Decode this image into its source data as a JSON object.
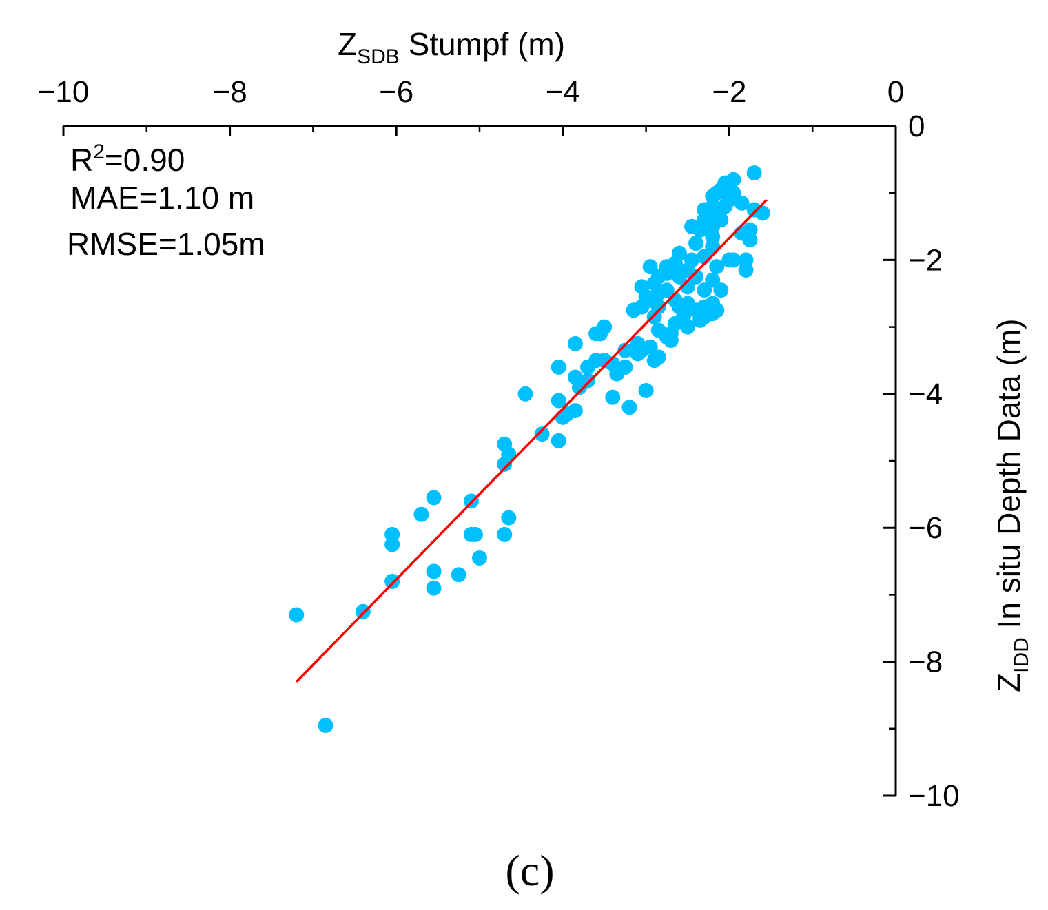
{
  "chart_data": {
    "type": "scatter",
    "panel_label": "(c)",
    "xlabel": {
      "main": "Z",
      "sub": "SDB",
      "rest": " Stumpf (m)"
    },
    "ylabel": {
      "main": "Z",
      "sub": "IDD",
      "rest": " In situ Depth Data (m)"
    },
    "xlim": [
      -10,
      0
    ],
    "ylim": [
      -10,
      0
    ],
    "x_axis_position": "top",
    "y_axis_position": "right",
    "x_ticks": [
      -10,
      -8,
      -6,
      -4,
      -2,
      0
    ],
    "x_tick_labels": [
      "−10",
      "−8",
      "−6",
      "−4",
      "−2",
      "0"
    ],
    "y_ticks": [
      0,
      -2,
      -4,
      -6,
      -8,
      -10
    ],
    "y_tick_labels": [
      "0",
      "−2",
      "−4",
      "−6",
      "−8",
      "−10"
    ],
    "stats": {
      "r2_prefix": "R",
      "r2_sup": "2",
      "r2_value": "=0.90",
      "mae": "MAE=1.10 m",
      "rmse": "RMSE=1.05m"
    },
    "colors": {
      "points": "#00bfff",
      "fit_line": "#ff0000",
      "axis": "#000000"
    },
    "fit_line": {
      "x": [
        -7.2,
        -1.55
      ],
      "y": [
        -8.3,
        -1.1
      ]
    },
    "series": [
      {
        "name": "observations",
        "points": [
          [
            -1.7,
            -0.7
          ],
          [
            -1.95,
            -0.8
          ],
          [
            -2.05,
            -0.85
          ],
          [
            -2.1,
            -0.95
          ],
          [
            -2.15,
            -1.0
          ],
          [
            -2.2,
            -1.05
          ],
          [
            -1.95,
            -1.0
          ],
          [
            -2.0,
            -1.1
          ],
          [
            -1.85,
            -1.15
          ],
          [
            -2.05,
            -1.2
          ],
          [
            -2.2,
            -1.2
          ],
          [
            -2.3,
            -1.25
          ],
          [
            -2.15,
            -1.3
          ],
          [
            -1.6,
            -1.3
          ],
          [
            -1.7,
            -1.25
          ],
          [
            -2.3,
            -1.4
          ],
          [
            -2.1,
            -1.4
          ],
          [
            -2.2,
            -1.5
          ],
          [
            -2.45,
            -1.5
          ],
          [
            -1.75,
            -1.55
          ],
          [
            -2.35,
            -1.55
          ],
          [
            -1.85,
            -1.6
          ],
          [
            -2.2,
            -1.65
          ],
          [
            -1.75,
            -1.7
          ],
          [
            -2.4,
            -1.75
          ],
          [
            -2.2,
            -1.8
          ],
          [
            -2.6,
            -1.9
          ],
          [
            -2.3,
            -1.95
          ],
          [
            -1.95,
            -2.0
          ],
          [
            -2.45,
            -2.0
          ],
          [
            -2.65,
            -2.05
          ],
          [
            -2.0,
            -2.0
          ],
          [
            -1.8,
            -2.0
          ],
          [
            -2.75,
            -2.1
          ],
          [
            -2.95,
            -2.1
          ],
          [
            -2.15,
            -2.1
          ],
          [
            -1.8,
            -2.15
          ],
          [
            -2.5,
            -2.15
          ],
          [
            -2.75,
            -2.2
          ],
          [
            -2.85,
            -2.25
          ],
          [
            -2.4,
            -2.25
          ],
          [
            -2.6,
            -2.25
          ],
          [
            -2.2,
            -2.3
          ],
          [
            -2.9,
            -2.35
          ],
          [
            -2.5,
            -2.4
          ],
          [
            -2.1,
            -2.45
          ],
          [
            -3.05,
            -2.4
          ],
          [
            -2.75,
            -2.45
          ],
          [
            -2.3,
            -2.45
          ],
          [
            -2.85,
            -2.5
          ],
          [
            -3.0,
            -2.55
          ],
          [
            -2.95,
            -2.6
          ],
          [
            -2.65,
            -2.6
          ],
          [
            -2.5,
            -2.65
          ],
          [
            -2.2,
            -2.65
          ],
          [
            -3.05,
            -2.7
          ],
          [
            -2.85,
            -2.7
          ],
          [
            -2.6,
            -2.7
          ],
          [
            -2.3,
            -2.7
          ],
          [
            -2.15,
            -2.75
          ],
          [
            -2.4,
            -2.75
          ],
          [
            -3.15,
            -2.75
          ],
          [
            -2.2,
            -2.8
          ],
          [
            -2.3,
            -2.85
          ],
          [
            -2.55,
            -2.85
          ],
          [
            -2.9,
            -2.85
          ],
          [
            -2.35,
            -2.9
          ],
          [
            -2.65,
            -2.95
          ],
          [
            -2.5,
            -3.0
          ],
          [
            -2.85,
            -3.05
          ],
          [
            -2.7,
            -3.1
          ],
          [
            -3.5,
            -3.0
          ],
          [
            -3.55,
            -3.1
          ],
          [
            -3.6,
            -3.1
          ],
          [
            -2.75,
            -3.15
          ],
          [
            -2.7,
            -3.2
          ],
          [
            -3.1,
            -3.25
          ],
          [
            -2.95,
            -3.3
          ],
          [
            -3.85,
            -3.25
          ],
          [
            -3.05,
            -3.35
          ],
          [
            -3.25,
            -3.35
          ],
          [
            -3.1,
            -3.4
          ],
          [
            -2.85,
            -3.45
          ],
          [
            -2.9,
            -3.5
          ],
          [
            -3.6,
            -3.5
          ],
          [
            -3.5,
            -3.5
          ],
          [
            -3.4,
            -3.55
          ],
          [
            -3.7,
            -3.6
          ],
          [
            -3.25,
            -3.6
          ],
          [
            -4.05,
            -3.6
          ],
          [
            -3.35,
            -3.7
          ],
          [
            -3.85,
            -3.75
          ],
          [
            -3.7,
            -3.8
          ],
          [
            -3.8,
            -3.9
          ],
          [
            -3.0,
            -3.95
          ],
          [
            -4.45,
            -4.0
          ],
          [
            -3.4,
            -4.05
          ],
          [
            -4.05,
            -4.1
          ],
          [
            -3.2,
            -4.2
          ],
          [
            -3.85,
            -4.25
          ],
          [
            -3.95,
            -4.3
          ],
          [
            -4.0,
            -4.35
          ],
          [
            -4.25,
            -4.6
          ],
          [
            -4.05,
            -4.7
          ],
          [
            -4.7,
            -4.75
          ],
          [
            -4.65,
            -4.9
          ],
          [
            -4.7,
            -5.05
          ],
          [
            -5.55,
            -5.55
          ],
          [
            -5.1,
            -5.6
          ],
          [
            -4.65,
            -5.85
          ],
          [
            -5.7,
            -5.8
          ],
          [
            -5.05,
            -6.1
          ],
          [
            -5.1,
            -6.1
          ],
          [
            -4.7,
            -6.1
          ],
          [
            -6.05,
            -6.1
          ],
          [
            -6.05,
            -6.25
          ],
          [
            -5.0,
            -6.45
          ],
          [
            -5.55,
            -6.65
          ],
          [
            -5.25,
            -6.7
          ],
          [
            -6.05,
            -6.8
          ],
          [
            -5.55,
            -6.9
          ],
          [
            -6.4,
            -7.25
          ],
          [
            -7.2,
            -7.3
          ],
          [
            -6.85,
            -8.95
          ]
        ]
      }
    ]
  }
}
